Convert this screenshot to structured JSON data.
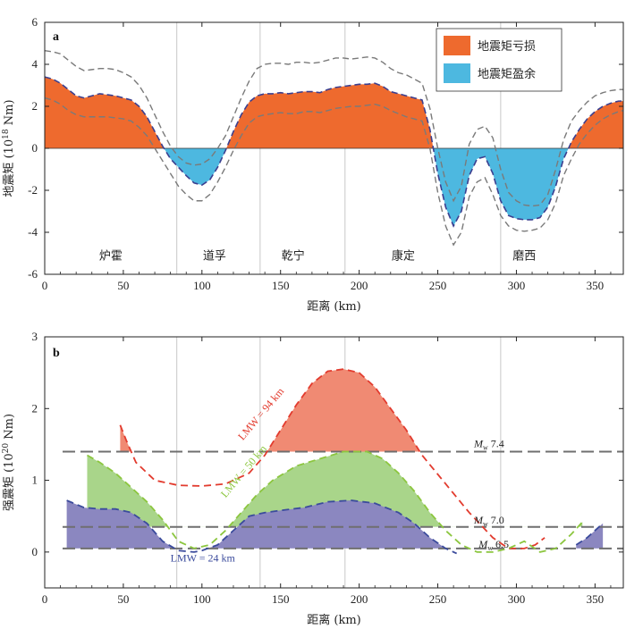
{
  "chart_data": [
    {
      "panel": "a",
      "type": "area",
      "xlabel": "距离 (km)",
      "ylabel": "地震矩 (10",
      "ylabel_sup": "18",
      "ylabel_unit": " Nm)",
      "xlim": [
        0,
        368
      ],
      "ylim": [
        -6,
        6
      ],
      "xticks": [
        0,
        50,
        100,
        150,
        200,
        250,
        300,
        350
      ],
      "yticks": [
        -6,
        -4,
        -2,
        0,
        2,
        4,
        6
      ],
      "legend": [
        {
          "label": "地震矩亏损",
          "color": "#ee6a2e"
        },
        {
          "label": "地震矩盈余",
          "color": "#4db8e0"
        }
      ],
      "legend_position": "top-right",
      "colors": {
        "deficit": "#ee6a2e",
        "surplus": "#4db8e0",
        "mean_line": "#3b3f8f",
        "bound_line": "#7a7a7a",
        "divider": "#c8c8c8"
      },
      "dividers_km": [
        84,
        137,
        191,
        290
      ],
      "regions": [
        {
          "label": "炉霍",
          "x": 42
        },
        {
          "label": "道孚",
          "x": 108
        },
        {
          "label": "乾宁",
          "x": 158
        },
        {
          "label": "康定",
          "x": 228
        },
        {
          "label": "磨西",
          "x": 305
        }
      ],
      "series": [
        {
          "role": "mean",
          "x": [
            0,
            5,
            10,
            15,
            20,
            25,
            30,
            35,
            40,
            45,
            50,
            55,
            60,
            65,
            70,
            75,
            80,
            85,
            90,
            95,
            100,
            105,
            110,
            115,
            120,
            125,
            130,
            135,
            140,
            145,
            150,
            155,
            160,
            165,
            170,
            175,
            180,
            185,
            190,
            195,
            200,
            205,
            210,
            215,
            220,
            225,
            230,
            235,
            240,
            245,
            250,
            255,
            260,
            265,
            270,
            275,
            280,
            285,
            290,
            295,
            300,
            305,
            310,
            315,
            320,
            325,
            330,
            335,
            340,
            345,
            350,
            355,
            360,
            365,
            368
          ],
          "y": [
            3.4,
            3.3,
            3.1,
            2.8,
            2.5,
            2.4,
            2.5,
            2.6,
            2.55,
            2.5,
            2.4,
            2.3,
            2.0,
            1.5,
            0.8,
            0.1,
            -0.5,
            -0.9,
            -1.3,
            -1.65,
            -1.75,
            -1.5,
            -0.9,
            -0.1,
            0.8,
            1.6,
            2.2,
            2.5,
            2.6,
            2.6,
            2.65,
            2.6,
            2.65,
            2.7,
            2.7,
            2.65,
            2.8,
            2.9,
            2.95,
            3.0,
            3.05,
            3.05,
            3.1,
            2.95,
            2.7,
            2.6,
            2.5,
            2.4,
            2.3,
            0.9,
            -1.2,
            -2.8,
            -3.7,
            -3.0,
            -1.3,
            -0.5,
            -0.4,
            -1.2,
            -2.5,
            -3.2,
            -3.35,
            -3.4,
            -3.4,
            -3.3,
            -2.8,
            -1.8,
            -0.5,
            0.3,
            0.9,
            1.4,
            1.75,
            2.0,
            2.15,
            2.25,
            2.25
          ]
        },
        {
          "role": "upper",
          "x": [
            0,
            5,
            10,
            15,
            20,
            25,
            30,
            35,
            40,
            45,
            50,
            55,
            60,
            65,
            70,
            75,
            80,
            85,
            90,
            95,
            100,
            105,
            110,
            115,
            120,
            125,
            130,
            135,
            140,
            145,
            150,
            155,
            160,
            165,
            170,
            175,
            180,
            185,
            190,
            195,
            200,
            205,
            210,
            215,
            220,
            225,
            230,
            235,
            240,
            245,
            250,
            255,
            260,
            265,
            270,
            275,
            280,
            285,
            290,
            295,
            300,
            305,
            310,
            315,
            320,
            325,
            330,
            335,
            340,
            345,
            350,
            355,
            360,
            365,
            368
          ],
          "y": [
            4.65,
            4.6,
            4.5,
            4.2,
            3.9,
            3.7,
            3.75,
            3.8,
            3.8,
            3.75,
            3.6,
            3.4,
            3.0,
            2.4,
            1.6,
            0.8,
            0.1,
            -0.4,
            -0.7,
            -0.8,
            -0.75,
            -0.5,
            0.0,
            0.6,
            1.5,
            2.4,
            3.2,
            3.8,
            4.0,
            4.05,
            4.05,
            4.0,
            4.1,
            4.1,
            4.05,
            4.1,
            4.2,
            4.3,
            4.3,
            4.25,
            4.3,
            4.35,
            4.3,
            4.1,
            3.8,
            3.6,
            3.5,
            3.3,
            3.1,
            1.9,
            0.0,
            -1.6,
            -2.5,
            -1.8,
            0.2,
            0.9,
            1.05,
            0.5,
            -1.0,
            -2.1,
            -2.5,
            -2.7,
            -2.75,
            -2.7,
            -2.2,
            -1.0,
            0.4,
            1.3,
            1.8,
            2.2,
            2.5,
            2.65,
            2.75,
            2.8,
            2.8
          ]
        },
        {
          "role": "lower",
          "x": [
            0,
            5,
            10,
            15,
            20,
            25,
            30,
            35,
            40,
            45,
            50,
            55,
            60,
            65,
            70,
            75,
            80,
            85,
            90,
            95,
            100,
            105,
            110,
            115,
            120,
            125,
            130,
            135,
            140,
            145,
            150,
            155,
            160,
            165,
            170,
            175,
            180,
            185,
            190,
            195,
            200,
            205,
            210,
            215,
            220,
            225,
            230,
            235,
            240,
            245,
            250,
            255,
            260,
            265,
            270,
            275,
            280,
            285,
            290,
            295,
            300,
            305,
            310,
            315,
            320,
            325,
            330,
            335,
            340,
            345,
            350,
            355,
            360,
            365,
            368
          ],
          "y": [
            2.4,
            2.3,
            2.1,
            1.8,
            1.6,
            1.5,
            1.5,
            1.5,
            1.5,
            1.45,
            1.4,
            1.3,
            1.0,
            0.6,
            0.0,
            -0.6,
            -1.2,
            -1.8,
            -2.2,
            -2.5,
            -2.5,
            -2.2,
            -1.6,
            -0.9,
            -0.1,
            0.6,
            1.2,
            1.5,
            1.6,
            1.65,
            1.7,
            1.65,
            1.65,
            1.75,
            1.75,
            1.7,
            1.8,
            1.9,
            1.95,
            2.0,
            2.0,
            2.05,
            2.1,
            2.0,
            1.8,
            1.65,
            1.5,
            1.4,
            1.3,
            0.0,
            -2.1,
            -3.7,
            -4.6,
            -4.0,
            -2.3,
            -1.6,
            -1.4,
            -2.2,
            -3.2,
            -3.7,
            -3.9,
            -3.95,
            -3.9,
            -3.8,
            -3.4,
            -2.6,
            -1.3,
            -0.5,
            0.2,
            0.7,
            1.1,
            1.4,
            1.6,
            1.75,
            1.8
          ]
        }
      ]
    },
    {
      "panel": "b",
      "type": "area",
      "xlabel": "距离 (km)",
      "ylabel": "强震矩 (10",
      "ylabel_sup": "20",
      "ylabel_unit": " Nm)",
      "xlim": [
        0,
        368
      ],
      "ylim": [
        -0.5,
        3
      ],
      "xticks": [
        0,
        50,
        100,
        150,
        200,
        250,
        300,
        350
      ],
      "yticks": [
        0,
        1,
        2,
        3
      ],
      "dividers_km": [
        84,
        137,
        191,
        290
      ],
      "thresholds": [
        {
          "label_prefix": "M",
          "label_sub": "w",
          "label_value": " 7.4",
          "y": 1.4
        },
        {
          "label_prefix": "M",
          "label_sub": "w",
          "label_value": " 7.0",
          "y": 0.35
        },
        {
          "label_prefix": "M",
          "label_sub": "w",
          "label_value": " 6.5",
          "y": 0.05
        }
      ],
      "threshold_color": "#6f6f6f",
      "series": [
        {
          "name": "LMW = 94 km",
          "color": "#e23b2e",
          "fill": "#f08a73",
          "base": 1.4,
          "x": [
            48,
            52,
            58,
            70,
            85,
            100,
            115,
            130,
            140,
            150,
            160,
            170,
            180,
            190,
            200,
            210,
            220,
            230,
            240,
            255,
            270,
            285,
            295,
            305,
            312,
            318
          ],
          "y": [
            1.77,
            1.55,
            1.25,
            1.0,
            0.93,
            0.92,
            0.95,
            1.1,
            1.35,
            1.7,
            2.05,
            2.35,
            2.52,
            2.55,
            2.5,
            2.3,
            2.0,
            1.7,
            1.35,
            0.95,
            0.55,
            0.2,
            0.05,
            0.05,
            0.1,
            0.2
          ]
        },
        {
          "name": "LMW = 50 km",
          "color": "#8cc63f",
          "fill": "#a9d58a",
          "base": 0.35,
          "x": [
            27,
            35,
            45,
            55,
            65,
            75,
            85,
            95,
            105,
            115,
            125,
            135,
            145,
            160,
            175,
            190,
            205,
            215,
            225,
            235,
            245,
            255,
            265,
            275,
            285,
            295,
            305,
            315,
            325,
            335,
            342
          ],
          "y": [
            1.35,
            1.25,
            1.1,
            0.9,
            0.7,
            0.45,
            0.15,
            0.05,
            0.1,
            0.3,
            0.55,
            0.8,
            1.0,
            1.2,
            1.3,
            1.4,
            1.4,
            1.3,
            1.1,
            0.85,
            0.55,
            0.3,
            0.1,
            0.0,
            0.0,
            0.05,
            0.15,
            0.0,
            0.05,
            0.25,
            0.42
          ]
        },
        {
          "name": "LMW = 24 km",
          "color": "#3b4b9c",
          "fill": "#8b87c0",
          "base": 0.05,
          "x": [
            14,
            25,
            35,
            45,
            55,
            65,
            75,
            85,
            95,
            100,
            110,
            120,
            130,
            140,
            150,
            165,
            180,
            195,
            210,
            225,
            235,
            245,
            255,
            262
          ],
          "y": [
            0.72,
            0.62,
            0.6,
            0.6,
            0.55,
            0.4,
            0.15,
            0.02,
            0.0,
            0.02,
            0.1,
            0.3,
            0.5,
            0.55,
            0.58,
            0.62,
            0.7,
            0.72,
            0.68,
            0.55,
            0.4,
            0.2,
            0.05,
            -0.02
          ]
        },
        {
          "role": "tail",
          "color": "#3b4b9c",
          "fill": "#8b87c0",
          "base": 0.05,
          "x": [
            338,
            345,
            355
          ],
          "y": [
            0.1,
            0.2,
            0.4
          ]
        }
      ]
    }
  ],
  "panel_letters": [
    "a",
    "b"
  ]
}
